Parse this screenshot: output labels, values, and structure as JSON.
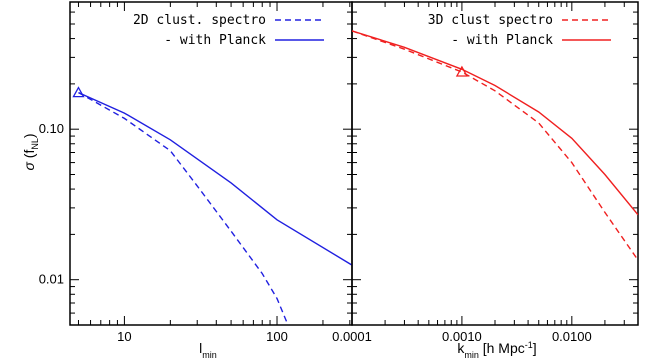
{
  "chart_data": [
    {
      "type": "line",
      "xscale": "log",
      "yscale": "log",
      "xlim": [
        4.4,
        310
      ],
      "ylim": [
        0.005,
        0.7
      ],
      "xticks": [
        10,
        100
      ],
      "xtick_labels": [
        "10",
        "100"
      ],
      "yticks": [
        0.01,
        0.1
      ],
      "ytick_labels": [
        "0.01",
        "0.10"
      ],
      "xlabel": "l_min",
      "ylabel": "σ (f_NL)",
      "legend_placement": "top-right",
      "series": [
        {
          "name": "2D clust. spectro",
          "style": "dashed",
          "color": "#2020e0",
          "x": [
            5,
            10,
            20,
            30,
            50,
            80,
            100,
            120
          ],
          "y": [
            0.175,
            0.118,
            0.072,
            0.042,
            0.021,
            0.011,
            0.0075,
            0.0048
          ]
        },
        {
          "name": "- with Planck",
          "style": "solid",
          "color": "#2020e0",
          "x": [
            5,
            10,
            20,
            50,
            100,
            310
          ],
          "y": [
            0.175,
            0.128,
            0.085,
            0.044,
            0.025,
            0.0125
          ]
        }
      ],
      "markers": [
        {
          "shape": "triangle",
          "color": "#2020e0",
          "x": 5,
          "y": 0.175
        }
      ]
    },
    {
      "type": "line",
      "xscale": "log",
      "yscale": "log",
      "xlim": [
        0.0001,
        0.04
      ],
      "ylim": [
        0.005,
        0.7
      ],
      "xticks": [
        0.0001,
        0.001,
        0.01
      ],
      "xtick_labels": [
        "0.0001",
        "0.0010",
        "0.0100"
      ],
      "xlabel": "k_min [h Mpc^-1]",
      "legend_placement": "top-right",
      "series": [
        {
          "name": "3D clust spectro",
          "style": "dashed",
          "color": "#f02020",
          "x": [
            0.0001,
            0.0003,
            0.001,
            0.002,
            0.005,
            0.01,
            0.02,
            0.04
          ],
          "y": [
            0.45,
            0.34,
            0.24,
            0.18,
            0.11,
            0.06,
            0.028,
            0.0135
          ]
        },
        {
          "name": "- with Planck",
          "style": "solid",
          "color": "#f02020",
          "x": [
            0.0001,
            0.0003,
            0.001,
            0.002,
            0.005,
            0.01,
            0.02,
            0.04
          ],
          "y": [
            0.45,
            0.35,
            0.25,
            0.195,
            0.13,
            0.087,
            0.05,
            0.027
          ]
        }
      ],
      "markers": [
        {
          "shape": "triangle",
          "color": "#f02020",
          "x": 0.001,
          "y": 0.24
        }
      ]
    }
  ]
}
